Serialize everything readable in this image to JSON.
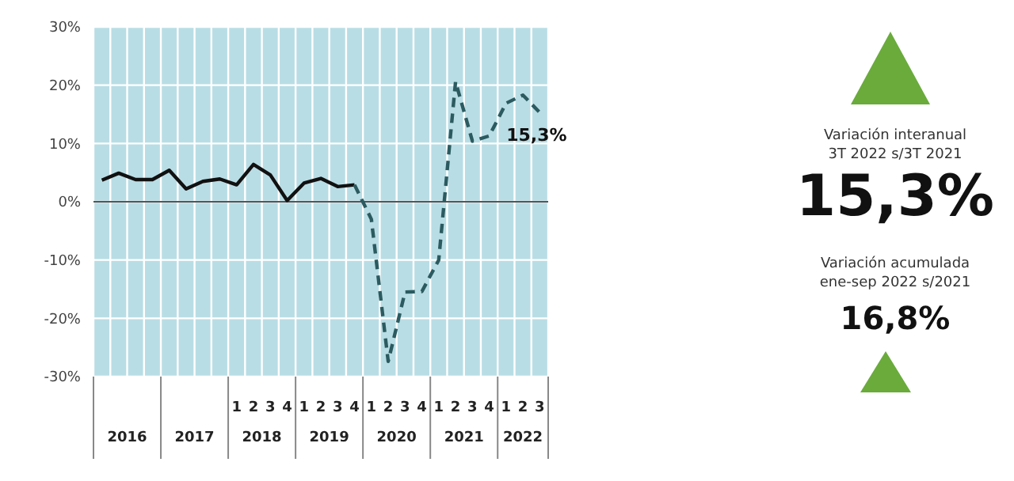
{
  "chart_data": [
    {
      "type": "line",
      "categories": [
        null,
        null,
        null,
        null,
        null,
        null,
        null,
        null,
        "1",
        "2",
        "3",
        "4",
        "1",
        "2",
        "3",
        "4",
        "1",
        "2",
        "3",
        "4",
        "1",
        "2",
        "3",
        "4",
        "1",
        "2",
        "3"
      ],
      "series": [
        {
          "color": "#111111",
          "line_style": "solid",
          "values": [
            3.7,
            4.9,
            3.8,
            3.8,
            5.4,
            2.2,
            3.5,
            3.9,
            2.9,
            6.4,
            4.6,
            0.2,
            3.2,
            4.0,
            2.6,
            2.9,
            null,
            null,
            null,
            null,
            null,
            null,
            null,
            null,
            null,
            null,
            null
          ]
        },
        {
          "color": "#2b5b60",
          "line_style": "dashed",
          "values": [
            null,
            null,
            null,
            null,
            null,
            null,
            null,
            null,
            null,
            null,
            null,
            null,
            null,
            null,
            null,
            2.9,
            -3,
            -27.4,
            -15.5,
            -15.4,
            -10,
            20.6,
            10.4,
            11.3,
            16.9,
            18.3,
            15.3
          ],
          "value_labels": [
            null,
            null,
            null,
            null,
            null,
            null,
            null,
            null,
            null,
            null,
            null,
            null,
            null,
            null,
            null,
            null,
            null,
            null,
            null,
            null,
            null,
            null,
            null,
            null,
            null,
            null,
            "15,3%"
          ]
        }
      ],
      "ylim": [
        -30,
        30
      ],
      "yticks": [
        {
          "value": -30,
          "label": "-30%"
        },
        {
          "value": -20,
          "label": "-20%"
        },
        {
          "value": -10,
          "label": "-10%"
        },
        {
          "value": 0,
          "label": "0%"
        },
        {
          "value": 10,
          "label": "10%"
        },
        {
          "value": 20,
          "label": "20%"
        },
        {
          "value": 30,
          "label": "30%"
        }
      ],
      "grid": true,
      "marker": "none",
      "ref_lines": [
        {
          "axis": "y",
          "value": 0,
          "color": "#555555"
        }
      ],
      "annotations": [
        "2016",
        "2017",
        "2018",
        "2019",
        "2020",
        "2021",
        "2022"
      ]
    },
    {
      "type": "other",
      "annotations": [
        "Variación interanual",
        "3T 2022 s/3T 2021",
        "15,3%",
        "Variación acumulada",
        "ene-sep 2022 s/2021",
        "16,8%"
      ]
    }
  ]
}
